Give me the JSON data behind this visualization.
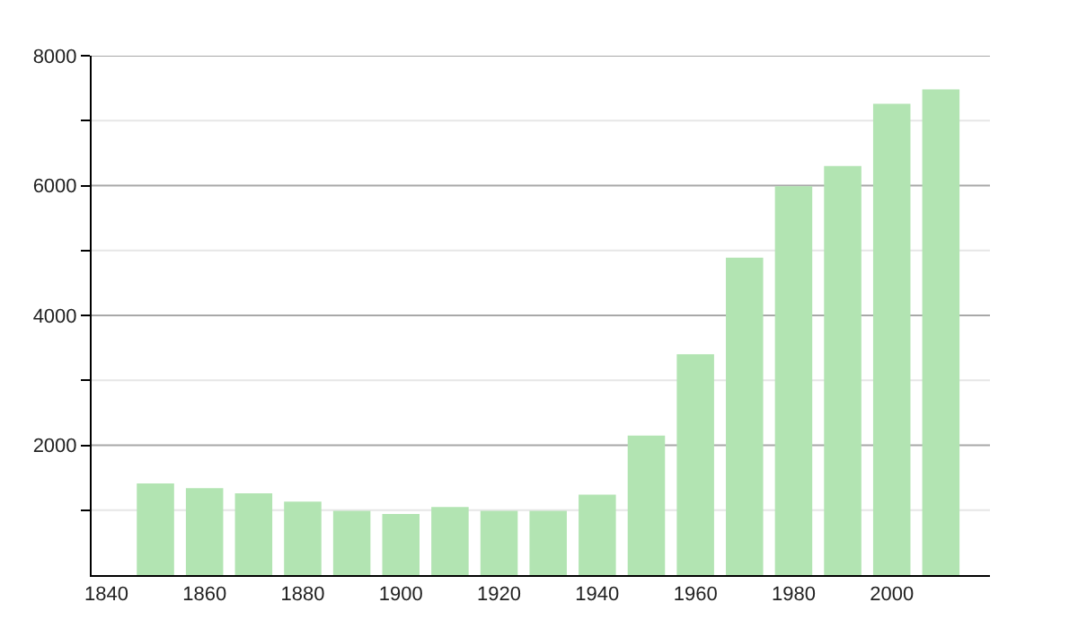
{
  "chart_data": {
    "type": "bar",
    "x": [
      1850,
      1860,
      1870,
      1880,
      1890,
      1900,
      1910,
      1920,
      1930,
      1940,
      1950,
      1960,
      1970,
      1980,
      1990,
      2000,
      2010
    ],
    "values": [
      1410,
      1340,
      1260,
      1130,
      990,
      940,
      1050,
      990,
      990,
      1240,
      2150,
      3400,
      4890,
      5990,
      6300,
      7260,
      7480
    ],
    "color": "#b2e4b2",
    "xlim": [
      1837,
      2020
    ],
    "xticks": [
      1840,
      1860,
      1880,
      1900,
      1920,
      1940,
      1960,
      1980,
      2000
    ],
    "ylim": [
      0,
      8000
    ],
    "yticks": [
      {
        "value": 1000,
        "label": null
      },
      2000,
      {
        "value": 3000,
        "label": null
      },
      4000,
      {
        "value": 5000,
        "label": null
      },
      6000,
      {
        "value": 7000,
        "label": null
      },
      8000
    ],
    "grid": "y"
  }
}
